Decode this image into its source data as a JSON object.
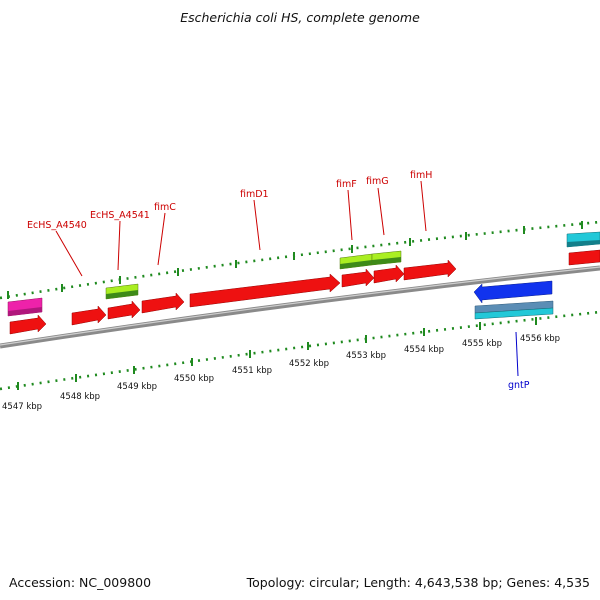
{
  "title": "Escherichia coli HS, complete genome",
  "footer": {
    "accession": "Accession: NC_009800",
    "summary": "Topology: circular; Length: 4,643,538 bp; Genes: 4,535"
  },
  "colors": {
    "background": "#ffffff",
    "backbone": "#7f7f7f",
    "tick": "#1f8a1f",
    "label_red": "#cc0000",
    "label_blue": "#0000cc",
    "cds": "#ee1111",
    "gene_other": "#aadd22",
    "trna_pink": "#ee22aa",
    "cyan": "#22c8d8",
    "blue": "#1133ee"
  },
  "scale": {
    "labels": [
      "4547 kbp",
      "4548 kbp",
      "4549 kbp",
      "4550 kbp",
      "4551 kbp",
      "4552 kbp",
      "4553 kbp",
      "4554 kbp",
      "4555 kbp",
      "4556 kbp"
    ]
  },
  "gene_labels": [
    {
      "name": "EcHS_A4540",
      "strand": "forward"
    },
    {
      "name": "EcHS_A4541",
      "strand": "forward"
    },
    {
      "name": "fimC",
      "strand": "forward"
    },
    {
      "name": "fimD1",
      "strand": "forward"
    },
    {
      "name": "fimF",
      "strand": "forward"
    },
    {
      "name": "fimG",
      "strand": "forward"
    },
    {
      "name": "fimH",
      "strand": "forward"
    },
    {
      "name": "gntP",
      "strand": "reverse"
    }
  ]
}
